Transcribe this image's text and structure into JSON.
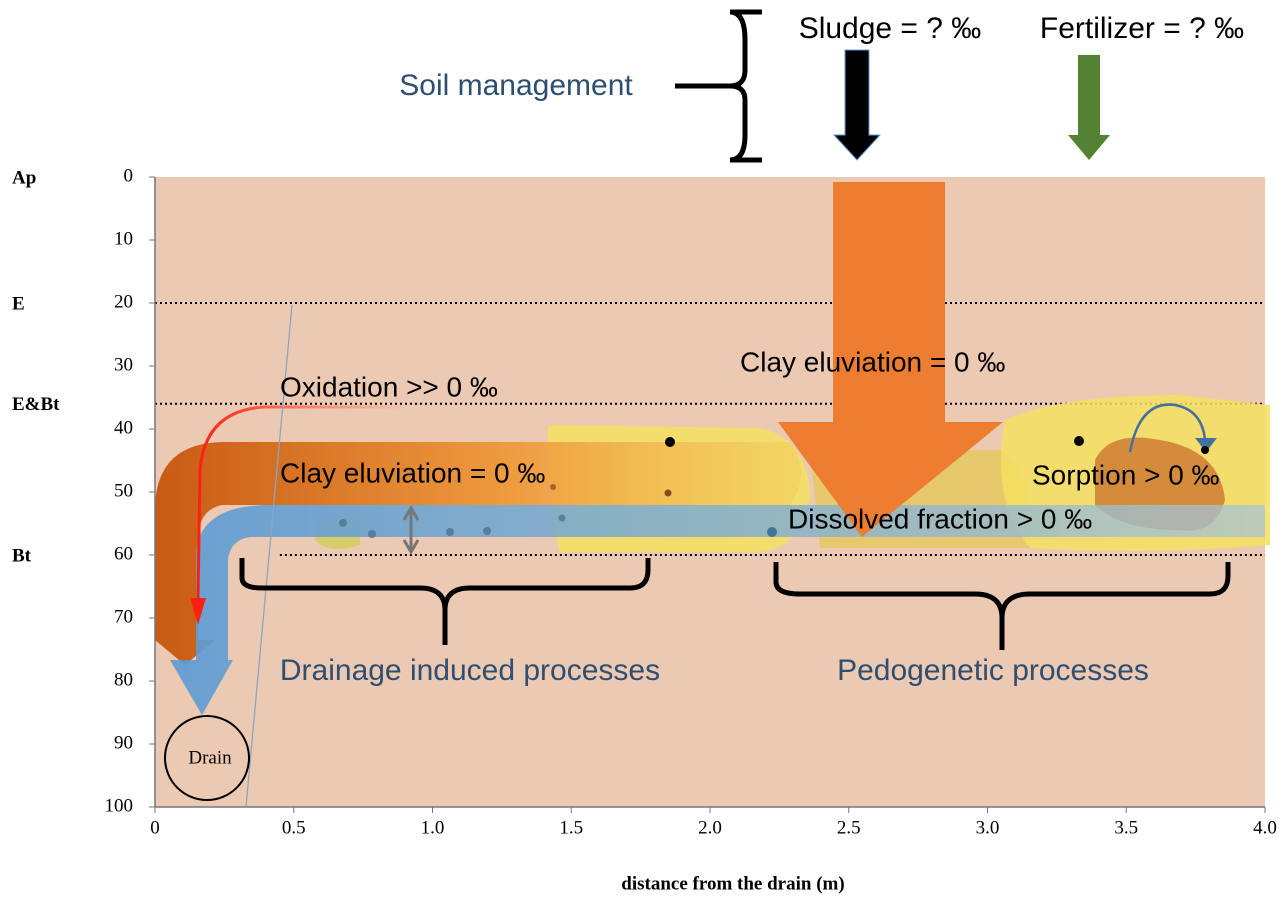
{
  "axes": {
    "x_label": "distance from the drain (m)",
    "xlim": [
      0,
      4.0
    ],
    "xticks": [
      0,
      0.5,
      {
        "value": 1.0,
        "label": "1.0"
      },
      1.5,
      {
        "value": 2.0,
        "label": "2.0"
      },
      2.5,
      {
        "value": 3.0,
        "label": "3.0"
      },
      3.5,
      {
        "value": 4.0,
        "label": "4.0"
      }
    ],
    "ylim": [
      0,
      100
    ],
    "yticks": [
      0,
      10,
      20,
      30,
      40,
      50,
      60,
      70,
      80,
      90,
      100
    ]
  },
  "horizons": [
    {
      "label": "Ap",
      "depth": 0
    },
    {
      "label": "E",
      "depth": 20
    },
    {
      "label": "E&Bt",
      "depth": 36
    },
    {
      "label": "Bt",
      "depth": 60
    }
  ],
  "inputs": {
    "group": "Soil management",
    "sludge": "Sludge = ? ‰",
    "fertilizer": "Fertilizer = ? ‰"
  },
  "annotations": {
    "clay_eluviation_top": "Clay eluviation = 0 ‰",
    "oxidation": "Oxidation >> 0 ‰",
    "clay_eluviation_drain": "Clay eluviation = 0 ‰",
    "sorption": "Sorption > 0 ‰",
    "dissolved": "Dissolved fraction > 0  ‰",
    "drainage_processes": "Drainage induced processes",
    "pedogenetic_processes": "Pedogenetic processes",
    "drain": "Drain"
  }
}
